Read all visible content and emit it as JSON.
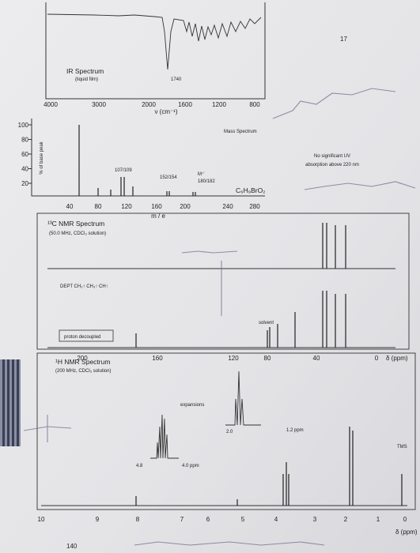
{
  "page_number": "17",
  "ir": {
    "title": "IR Spectrum",
    "subtitle": "(liquid film)",
    "peak_label": "1740",
    "x_ticks": [
      "4000",
      "3000",
      "2000",
      "1600",
      "1200",
      "800"
    ],
    "x_label": "ν (cm⁻¹)"
  },
  "mass": {
    "title": "Mass Spectrum",
    "y_label": "% of base peak",
    "y_ticks": [
      "100",
      "80",
      "60",
      "40",
      "20"
    ],
    "x_ticks": [
      "40",
      "80",
      "120",
      "160",
      "200",
      "240",
      "280"
    ],
    "x_label": "m / e",
    "peak_labels": [
      "107/109",
      "152/154",
      "M⁺˙",
      "180/182"
    ],
    "formula": "C₆H₉BrO₂"
  },
  "uv_note": [
    "No significant UV",
    "absorption above 220 nm"
  ],
  "c13": {
    "title": "¹³C NMR Spectrum",
    "subtitle": "(50.0 MHz, CDCl₃ solution)",
    "dept": "DEPT CH₂↑ CH₃↑ CH↑",
    "decoupled": "proton decoupled",
    "solvent": "solvent",
    "x_ticks": [
      "200",
      "160",
      "120",
      "80",
      "40",
      "0"
    ],
    "x_label": "δ (ppm)"
  },
  "h1": {
    "title": "¹H NMR Spectrum",
    "subtitle": "(200 MHz, CDCl₃ solution)",
    "expansions": "expansions",
    "inset1_ticks": [
      "4.8",
      "4.0 ppm"
    ],
    "inset2_ticks": [
      "2.0",
      "1.2 ppm"
    ],
    "tms": "TMS",
    "x_ticks": [
      "10",
      "9",
      "8",
      "7",
      "6",
      "5",
      "4",
      "3",
      "2",
      "1",
      "0"
    ],
    "x_label": "δ (ppm)"
  },
  "footer_label": "140"
}
